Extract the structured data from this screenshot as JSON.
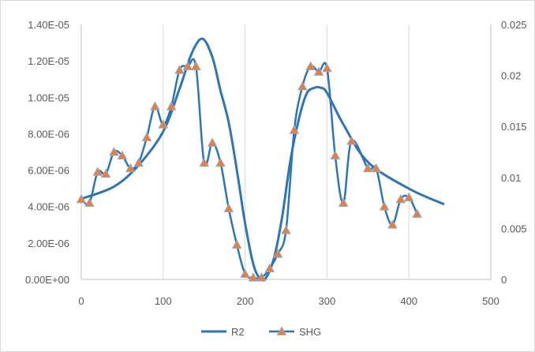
{
  "chart_data": {
    "type": "line",
    "grid": "vertical",
    "legend_position": "bottom",
    "x_axis": {
      "range": [
        0,
        500
      ],
      "ticks": [
        "0",
        "100",
        "200",
        "300",
        "400",
        "500"
      ]
    },
    "y_left": {
      "range": [
        0,
        1.4e-05
      ],
      "ticks": [
        "0.00E+00",
        "2.00E-06",
        "4.00E-06",
        "6.00E-06",
        "8.00E-06",
        "1.00E-05",
        "1.20E-05",
        "1.40E-05"
      ]
    },
    "y_right": {
      "range": [
        0,
        0.025
      ],
      "ticks": [
        "0",
        "0.005",
        "0.01",
        "0.015",
        "0.02",
        "0.025"
      ]
    },
    "series": [
      {
        "name": "R2",
        "axis": "right",
        "style": "smooth-line",
        "color": "#2e75b6",
        "x": [
          0,
          40,
          70,
          100,
          120,
          135,
          148,
          160,
          170,
          180,
          190,
          200,
          210,
          218,
          225,
          235,
          245,
          255,
          265,
          275,
          285,
          292,
          300,
          320,
          350,
          400,
          442
        ],
        "values": [
          0.0079,
          0.0091,
          0.0112,
          0.0145,
          0.0187,
          0.0222,
          0.0236,
          0.0218,
          0.0185,
          0.0154,
          0.0107,
          0.0055,
          0.0015,
          0.0001,
          0.0001,
          0.002,
          0.006,
          0.0115,
          0.0155,
          0.0182,
          0.0188,
          0.0188,
          0.0183,
          0.0152,
          0.0115,
          0.0089,
          0.0074
        ]
      },
      {
        "name": "SHG",
        "axis": "left",
        "style": "line-with-triangle-markers",
        "color": "#2e75b6",
        "marker_color": "#ed7d31",
        "x": [
          0,
          10,
          20,
          30,
          40,
          50,
          60,
          70,
          80,
          90,
          100,
          110,
          120,
          130,
          140,
          150,
          160,
          170,
          180,
          190,
          200,
          210,
          220,
          230,
          240,
          250,
          260,
          270,
          280,
          290,
          300,
          310,
          320,
          330,
          350,
          360,
          370,
          380,
          390,
          400,
          410
        ],
        "values": [
          4.4e-06,
          4.2e-06,
          5.9e-06,
          5.8e-06,
          7e-06,
          6.8e-06,
          6.1e-06,
          6.4e-06,
          7.8e-06,
          9.5e-06,
          8.5e-06,
          9.5e-06,
          1.15e-05,
          1.17e-05,
          1.17e-05,
          6.4e-06,
          7.5e-06,
          6.4e-06,
          3.9e-06,
          1.9e-06,
          3e-07,
          1e-07,
          1e-07,
          6e-07,
          1.4e-06,
          2.7e-06,
          8.2e-06,
          1.06e-05,
          1.17e-05,
          1.14e-05,
          1.16e-05,
          6.8e-06,
          4.2e-06,
          7.6e-06,
          6.1e-06,
          6.1e-06,
          4e-06,
          3e-06,
          4.4e-06,
          4.5e-06,
          3.6e-06
        ]
      }
    ]
  }
}
